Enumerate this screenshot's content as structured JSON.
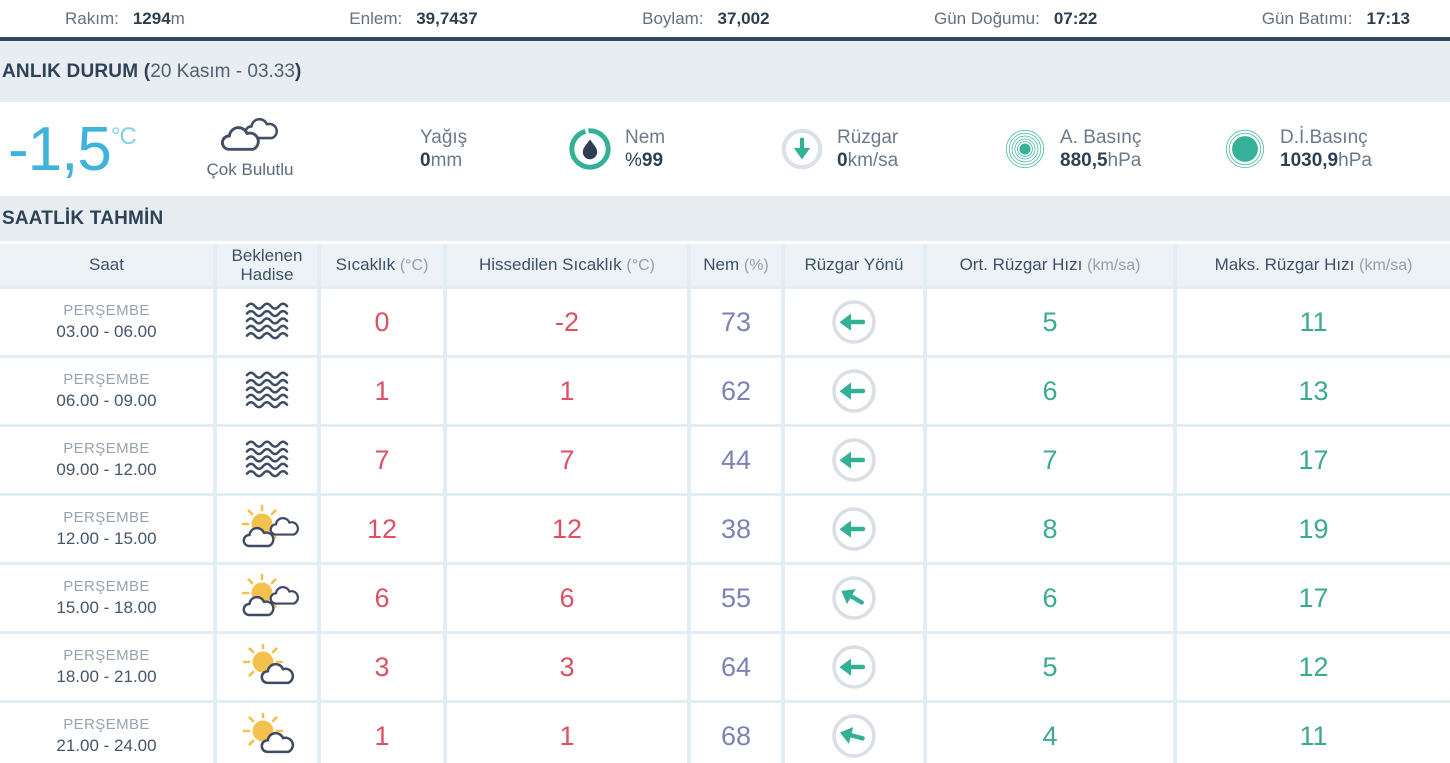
{
  "colors": {
    "teal": "#35ab94",
    "rose": "#dd5164",
    "purple": "#7e81b8",
    "cyan": "#3fb3d9",
    "navy": "#2e4257",
    "band": "#e7edf0"
  },
  "topbar": {
    "items": [
      {
        "label": "Rakım:",
        "value": "1294",
        "unit": "m"
      },
      {
        "label": "Enlem:",
        "value": "39,7437",
        "unit": ""
      },
      {
        "label": "Boylam:",
        "value": "37,002",
        "unit": ""
      },
      {
        "label": "Gün Doğumu:",
        "value": "07:22",
        "unit": ""
      },
      {
        "label": "Gün Batımı:",
        "value": "17:13",
        "unit": ""
      }
    ]
  },
  "current": {
    "section_title": "ANLIK DURUM (",
    "section_meta": "20 Kasım - 03.33",
    "section_close": ")",
    "temperature": "-1,5",
    "temperature_unit": "°C",
    "condition": "Çok Bulutlu",
    "condition_icon": "clouds-icon",
    "precip": {
      "label": "Yağış",
      "value": "0",
      "unit": "mm"
    },
    "humidity": {
      "label": "Nem",
      "prefix": "%",
      "value": "99"
    },
    "wind": {
      "label": "Rüzgar",
      "value": "0",
      "unit": "km/sa"
    },
    "pressure": {
      "label": "A. Basınç",
      "value": "880,5",
      "unit": "hPa"
    },
    "di_pressure": {
      "label": "D.İ.Basınç",
      "value": "1030,9",
      "unit": "hPa"
    }
  },
  "hourly": {
    "section_title": "SAATLİK TAHMİN",
    "columns": [
      {
        "label": "Saat",
        "unit": ""
      },
      {
        "label": "Beklenen Hadise",
        "unit": ""
      },
      {
        "label": "Sıcaklık",
        "unit": "(°C)"
      },
      {
        "label": "Hissedilen Sıcaklık",
        "unit": "(°C)"
      },
      {
        "label": "Nem",
        "unit": "(%)"
      },
      {
        "label": "Rüzgar Yönü",
        "unit": ""
      },
      {
        "label": "Ort. Rüzgar Hızı",
        "unit": "(km/sa)"
      },
      {
        "label": "Maks. Rüzgar Hızı",
        "unit": "(km/sa)"
      }
    ],
    "rows": [
      {
        "day": "PERŞEMBE",
        "time": "03.00 - 06.00",
        "icon": "fog",
        "temp": "0",
        "feels": "-2",
        "humidity": "73",
        "wind_dir_deg": 0,
        "wind_avg": "5",
        "wind_max": "11"
      },
      {
        "day": "PERŞEMBE",
        "time": "06.00 - 09.00",
        "icon": "fog",
        "temp": "1",
        "feels": "1",
        "humidity": "62",
        "wind_dir_deg": 0,
        "wind_avg": "6",
        "wind_max": "13"
      },
      {
        "day": "PERŞEMBE",
        "time": "09.00 - 12.00",
        "icon": "fog",
        "temp": "7",
        "feels": "7",
        "humidity": "44",
        "wind_dir_deg": 0,
        "wind_avg": "7",
        "wind_max": "17"
      },
      {
        "day": "PERŞEMBE",
        "time": "12.00 - 15.00",
        "icon": "sun-clouds",
        "temp": "12",
        "feels": "12",
        "humidity": "38",
        "wind_dir_deg": 0,
        "wind_avg": "8",
        "wind_max": "19"
      },
      {
        "day": "PERŞEMBE",
        "time": "15.00 - 18.00",
        "icon": "sun-clouds",
        "temp": "6",
        "feels": "6",
        "humidity": "55",
        "wind_dir_deg": 30,
        "wind_avg": "6",
        "wind_max": "17"
      },
      {
        "day": "PERŞEMBE",
        "time": "18.00 - 21.00",
        "icon": "sun-cloud",
        "temp": "3",
        "feels": "3",
        "humidity": "64",
        "wind_dir_deg": 0,
        "wind_avg": "5",
        "wind_max": "12"
      },
      {
        "day": "PERŞEMBE",
        "time": "21.00 - 24.00",
        "icon": "sun-cloud",
        "temp": "1",
        "feels": "1",
        "humidity": "68",
        "wind_dir_deg": 15,
        "wind_avg": "4",
        "wind_max": "11"
      }
    ]
  }
}
